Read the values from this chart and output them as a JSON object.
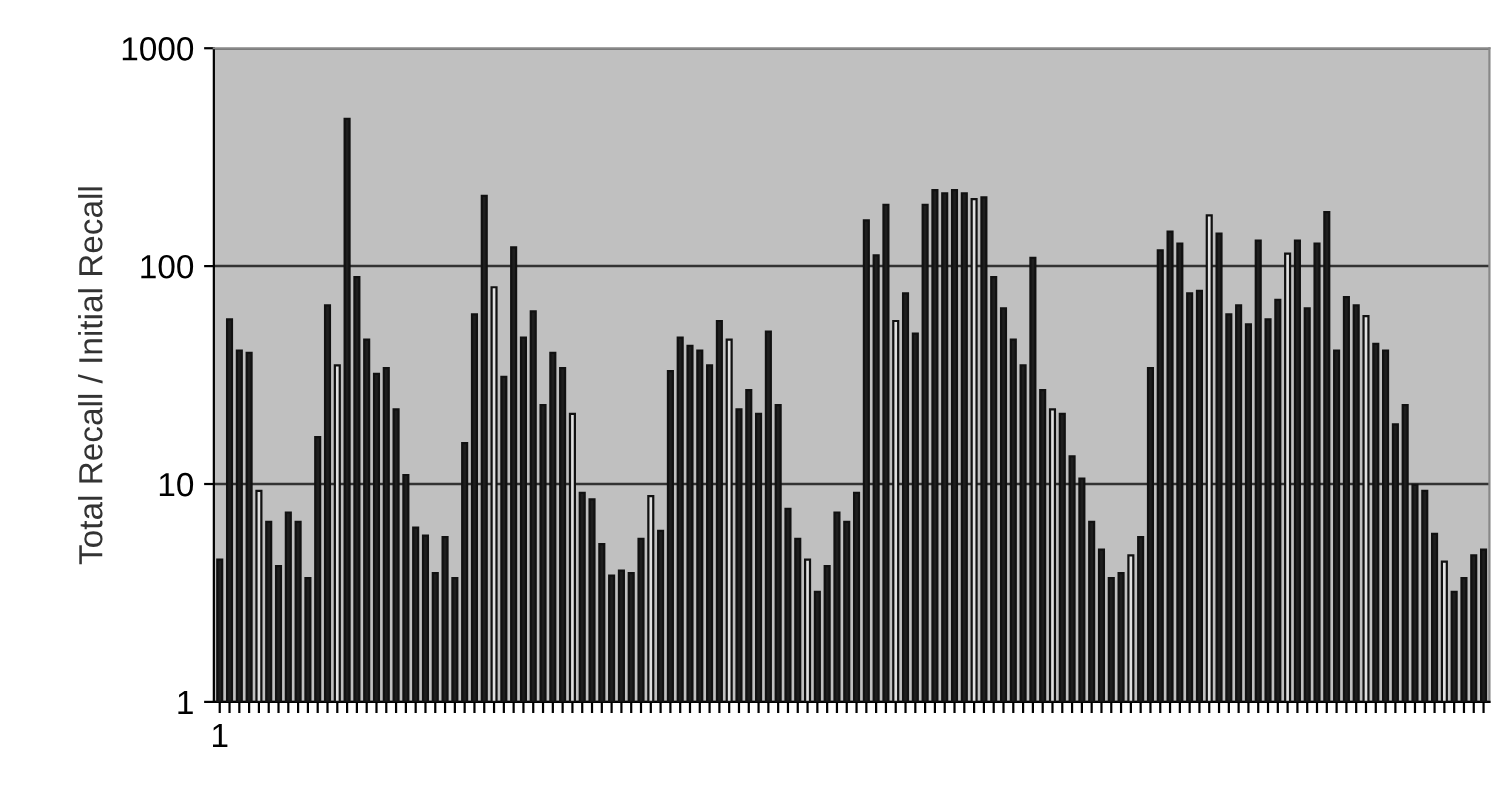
{
  "chart_data": {
    "type": "bar",
    "ylabel": "Total Recall / Initial Recall",
    "log": "y",
    "grid": "y",
    "ylim": [
      1,
      1000
    ],
    "yticks": [
      1,
      10,
      100,
      1000
    ],
    "categories": [
      "1",
      null,
      null,
      null,
      null,
      null,
      null,
      null,
      null,
      null,
      null,
      null,
      null,
      null,
      null,
      null,
      null,
      null,
      null,
      null,
      null,
      null,
      null,
      null,
      null,
      null,
      null,
      null,
      null,
      null,
      null,
      null,
      null,
      null,
      null,
      null,
      null,
      null,
      null,
      null,
      null,
      null,
      null,
      null,
      null,
      null,
      null,
      null,
      null,
      null,
      null,
      null,
      null,
      null,
      null,
      null,
      null,
      null,
      null,
      null,
      null,
      null,
      null,
      null,
      null,
      null,
      null,
      null,
      null,
      null,
      null,
      null,
      null,
      null,
      null,
      null,
      null,
      null,
      null,
      null,
      null,
      null,
      null,
      null,
      null,
      null,
      null,
      null,
      null,
      null,
      null,
      null,
      null,
      null,
      null,
      null,
      null,
      null,
      null,
      null,
      null,
      null,
      null,
      null,
      null,
      null,
      null,
      null,
      null,
      null,
      null,
      null,
      null,
      null,
      null,
      null,
      null,
      null,
      null,
      null,
      null,
      null,
      null,
      null,
      null,
      null,
      null,
      null,
      null,
      null
    ],
    "values": [
      4.5,
      57,
      41,
      40,
      9.3,
      6.7,
      4.2,
      7.4,
      6.7,
      3.7,
      16.4,
      66,
      35,
      474,
      89,
      46,
      32,
      34,
      22,
      11,
      6.3,
      5.8,
      3.9,
      5.7,
      3.7,
      15.4,
      60,
      210,
      80,
      31,
      122,
      47,
      62,
      23,
      40,
      34,
      21,
      9.1,
      8.5,
      5.3,
      3.8,
      4.0,
      3.9,
      5.6,
      8.8,
      6.1,
      33,
      47,
      43,
      41,
      35,
      56,
      46,
      22,
      27,
      21,
      50,
      23,
      7.7,
      5.6,
      4.5,
      3.2,
      4.2,
      7.4,
      6.7,
      9.1,
      162,
      112,
      191,
      56,
      75,
      49,
      191,
      223,
      216,
      223,
      216,
      203,
      207,
      89,
      64,
      46,
      35,
      109,
      27,
      22,
      21,
      13.4,
      10.6,
      6.7,
      5.0,
      3.7,
      3.9,
      4.7,
      5.7,
      34,
      118,
      144,
      127,
      75,
      77,
      171,
      141,
      60,
      66,
      54,
      131,
      57,
      70,
      114,
      131,
      64,
      127,
      177,
      41,
      72,
      66,
      59,
      44,
      41,
      18.8,
      23,
      9.9,
      9.3,
      5.9,
      4.4,
      3.2,
      3.7,
      4.7,
      5.0
    ],
    "colors": [
      "#1e1e1e",
      "#1e1e1e",
      "#1e1e1e",
      "#1e1e1e",
      "#e0e0e0",
      "#1e1e1e",
      "#1e1e1e",
      "#1e1e1e",
      "#1e1e1e",
      "#1e1e1e",
      "#1e1e1e",
      "#1e1e1e",
      "#e0e0e0",
      "#1e1e1e",
      "#1e1e1e",
      "#1e1e1e",
      "#1e1e1e",
      "#1e1e1e",
      "#1e1e1e",
      "#1e1e1e",
      "#1e1e1e",
      "#1e1e1e",
      "#1e1e1e",
      "#1e1e1e",
      "#1e1e1e",
      "#1e1e1e",
      "#1e1e1e",
      "#1e1e1e",
      "#e0e0e0",
      "#1e1e1e",
      "#1e1e1e",
      "#1e1e1e",
      "#1e1e1e",
      "#1e1e1e",
      "#1e1e1e",
      "#1e1e1e",
      "#e0e0e0",
      "#1e1e1e",
      "#1e1e1e",
      "#1e1e1e",
      "#1e1e1e",
      "#1e1e1e",
      "#1e1e1e",
      "#1e1e1e",
      "#e0e0e0",
      "#1e1e1e",
      "#1e1e1e",
      "#1e1e1e",
      "#1e1e1e",
      "#1e1e1e",
      "#1e1e1e",
      "#1e1e1e",
      "#e0e0e0",
      "#1e1e1e",
      "#1e1e1e",
      "#1e1e1e",
      "#1e1e1e",
      "#1e1e1e",
      "#1e1e1e",
      "#1e1e1e",
      "#e0e0e0",
      "#1e1e1e",
      "#1e1e1e",
      "#1e1e1e",
      "#1e1e1e",
      "#1e1e1e",
      "#1e1e1e",
      "#1e1e1e",
      "#1e1e1e",
      "#e0e0e0",
      "#1e1e1e",
      "#1e1e1e",
      "#1e1e1e",
      "#1e1e1e",
      "#1e1e1e",
      "#1e1e1e",
      "#1e1e1e",
      "#e0e0e0",
      "#1e1e1e",
      "#1e1e1e",
      "#1e1e1e",
      "#1e1e1e",
      "#1e1e1e",
      "#1e1e1e",
      "#1e1e1e",
      "#e0e0e0",
      "#1e1e1e",
      "#1e1e1e",
      "#1e1e1e",
      "#1e1e1e",
      "#1e1e1e",
      "#1e1e1e",
      "#1e1e1e",
      "#e0e0e0",
      "#1e1e1e",
      "#1e1e1e",
      "#1e1e1e",
      "#1e1e1e",
      "#1e1e1e",
      "#1e1e1e",
      "#1e1e1e",
      "#e0e0e0",
      "#1e1e1e",
      "#1e1e1e",
      "#1e1e1e",
      "#1e1e1e",
      "#1e1e1e",
      "#1e1e1e",
      "#1e1e1e",
      "#e0e0e0",
      "#1e1e1e",
      "#1e1e1e",
      "#1e1e1e",
      "#1e1e1e",
      "#1e1e1e",
      "#1e1e1e",
      "#1e1e1e",
      "#e0e0e0",
      "#1e1e1e",
      "#1e1e1e",
      "#1e1e1e",
      "#1e1e1e",
      "#1e1e1e",
      "#1e1e1e",
      "#1e1e1e",
      "#e0e0e0",
      "#1e1e1e",
      "#1e1e1e",
      "#1e1e1e",
      "#1e1e1e"
    ]
  }
}
